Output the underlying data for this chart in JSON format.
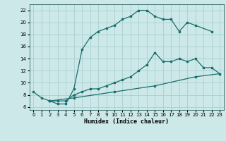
{
  "xlabel": "Humidex (Indice chaleur)",
  "background_color": "#cce8e8",
  "grid_color": "#aad0d0",
  "line_color": "#1a6e6e",
  "xlim": [
    -0.5,
    23.5
  ],
  "ylim": [
    5.5,
    23.0
  ],
  "xticks": [
    0,
    1,
    2,
    3,
    4,
    5,
    6,
    7,
    8,
    9,
    10,
    11,
    12,
    13,
    14,
    15,
    16,
    17,
    18,
    19,
    20,
    21,
    22,
    23
  ],
  "yticks": [
    6,
    8,
    10,
    12,
    14,
    16,
    18,
    20,
    22
  ],
  "line1_x": [
    0,
    1,
    2,
    3,
    4,
    5,
    6,
    7,
    8,
    9,
    10,
    11,
    12,
    13,
    14,
    15,
    16,
    17,
    18,
    19,
    20,
    22
  ],
  "line1_y": [
    8.5,
    7.5,
    7.0,
    6.5,
    6.5,
    9.0,
    15.5,
    17.5,
    18.5,
    19.0,
    19.5,
    20.5,
    21.0,
    22.0,
    22.0,
    21.0,
    20.5,
    20.5,
    18.5,
    20.0,
    19.5,
    18.5
  ],
  "line2_x": [
    2,
    3,
    4,
    5,
    6,
    7,
    8,
    9,
    10,
    11,
    12,
    13,
    14,
    15,
    16,
    17,
    18,
    19,
    20,
    21,
    22,
    23
  ],
  "line2_y": [
    7.0,
    7.0,
    7.0,
    8.0,
    8.5,
    9.0,
    9.0,
    9.5,
    10.0,
    10.5,
    11.0,
    12.0,
    13.0,
    15.0,
    13.5,
    13.5,
    14.0,
    13.5,
    14.0,
    12.5,
    12.5,
    11.5
  ],
  "line3_x": [
    2,
    5,
    10,
    15,
    20,
    23
  ],
  "line3_y": [
    7.0,
    7.5,
    8.5,
    9.5,
    11.0,
    11.5
  ]
}
